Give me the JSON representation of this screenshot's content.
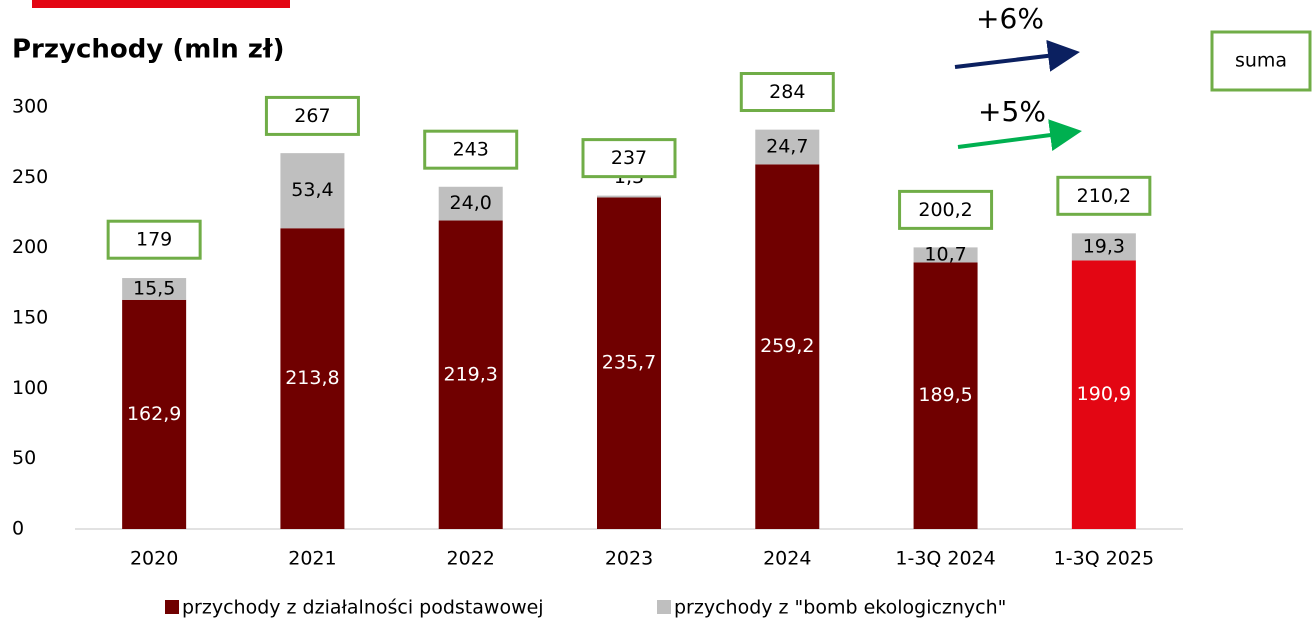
{
  "chart_data": {
    "type": "stacked_bar",
    "title": "Przychody (mln zł)",
    "categories": [
      "2020",
      "2021",
      "2022",
      "2023",
      "2024",
      "1-3Q 2024",
      "1-3Q 2025"
    ],
    "series": [
      {
        "name": "przychody z działalności podstawowej",
        "color": "#700000",
        "colors": [
          "#700000",
          "#700000",
          "#700000",
          "#700000",
          "#700000",
          "#700000",
          "#e30613"
        ],
        "values": [
          162.9,
          213.8,
          219.3,
          235.7,
          259.2,
          189.5,
          190.9
        ],
        "value_labels": [
          "162,9",
          "213,8",
          "219,3",
          "235,7",
          "259,2",
          "189,5",
          "190,9"
        ]
      },
      {
        "name": "przychody z \"bomb ekologicznych\"",
        "color": "#bfbfbf",
        "values": [
          15.5,
          53.4,
          24.0,
          1.3,
          24.7,
          10.7,
          19.3
        ],
        "value_labels": [
          "15,5",
          "53,4",
          "24,0",
          "1,3",
          "24,7",
          "10,7",
          "19,3"
        ]
      }
    ],
    "totals": {
      "name": "suma",
      "color": "#70ad47",
      "values": [
        179,
        267,
        243,
        237,
        284,
        200.2,
        210.2
      ],
      "value_labels": [
        "179",
        "267",
        "243",
        "237",
        "284",
        "200,2",
        "210,2"
      ]
    },
    "annotations": [
      {
        "text": "+6%",
        "color": "#0b2060"
      },
      {
        "text": "+5%",
        "color": "#00b050"
      }
    ],
    "ylim": [
      0,
      300
    ],
    "yticks": [
      0,
      50,
      100,
      150,
      200,
      250,
      300
    ],
    "grid": false
  }
}
